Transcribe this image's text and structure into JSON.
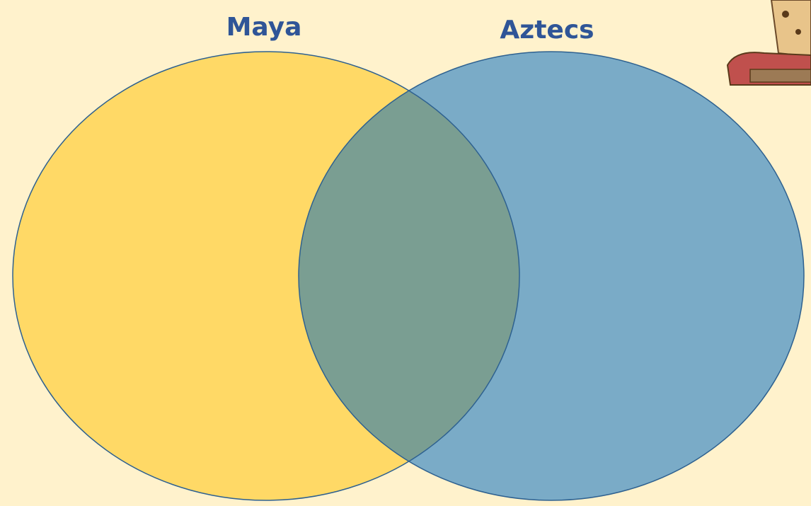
{
  "circles": [
    {
      "label": "Maya"
    },
    {
      "label": "Aztecs"
    }
  ]
}
